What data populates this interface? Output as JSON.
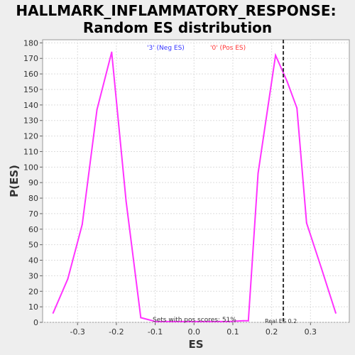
{
  "chart_data": {
    "type": "line",
    "title": [
      "HALLMARK_INFLAMMATORY_RESPONSE:",
      "Random ES distribution"
    ],
    "xlabel": "ES",
    "ylabel": "P(ES)",
    "xlim": [
      -0.39,
      0.4
    ],
    "ylim": [
      0,
      182
    ],
    "xticks": [
      "-0.3",
      "-0.2",
      "-0.1",
      "0.0",
      "0.1",
      "0.2",
      "0.3"
    ],
    "yticks": [
      "0",
      "10",
      "20",
      "30",
      "40",
      "50",
      "60",
      "70",
      "80",
      "90",
      "100",
      "110",
      "120",
      "130",
      "140",
      "150",
      "160",
      "170",
      "180"
    ],
    "grid": true,
    "series": [
      {
        "color": "#ff33ff",
        "x": [
          -0.363,
          -0.325,
          -0.288,
          -0.25,
          -0.212,
          -0.175,
          -0.137,
          -0.099,
          -0.062,
          -0.024,
          0.014,
          0.051,
          0.089,
          0.127,
          0.14,
          0.165,
          0.21,
          0.24,
          0.265,
          0.29,
          0.328,
          0.365
        ],
        "y": [
          6,
          28,
          63,
          137,
          174,
          78,
          3,
          0.5,
          0.5,
          0.5,
          0.5,
          0.5,
          0.5,
          1,
          1,
          96,
          172,
          155,
          138,
          64,
          35,
          6
        ]
      }
    ],
    "real_es": 0.23,
    "labels": {
      "neg": "'3' (Neg ES)",
      "pos": "'0' (Pos ES)",
      "pos_scores": "Sets with pos scores: 51%",
      "real_es": "Real ES 0.2"
    },
    "colors": {
      "neg_label": "#3333ff",
      "pos_label": "#ff3333",
      "line": "#ff33ff",
      "background": "#eeeeee",
      "plot_background": "#ffffff"
    }
  }
}
